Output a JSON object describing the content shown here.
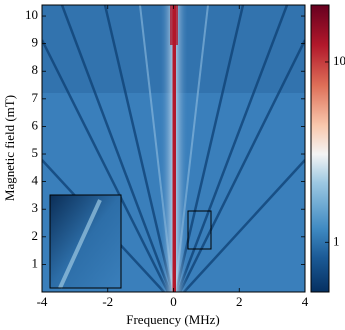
{
  "chart_data": {
    "type": "heatmap",
    "xlabel": "Frequency (MHz)",
    "ylabel": "Magnetic field (mT)",
    "xlim": [
      -4,
      4
    ],
    "xticks": [
      -4,
      -2,
      0,
      2,
      4
    ],
    "ylim": [
      0,
      10.4
    ],
    "yticks": [
      1,
      2,
      3,
      4,
      5,
      6,
      7,
      8,
      9,
      10
    ],
    "colormap": "RdBu_r",
    "colorbar": {
      "scale": "log",
      "lim": [
        0.53,
        20.7
      ],
      "ticks": [
        1,
        10
      ]
    }
  }
}
